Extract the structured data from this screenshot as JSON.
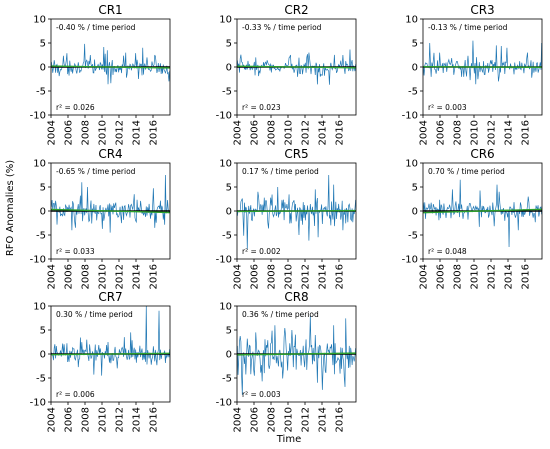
{
  "figure": {
    "ylabel": "RFO Anomalies (%)",
    "xlabel": "Time"
  },
  "chart_data": [
    {
      "type": "line",
      "title": "CR1",
      "trend_label": "-0.40 % / time period",
      "r2_label": "r² = 0.026",
      "slope": -0.4,
      "xlim": [
        2004,
        2018
      ],
      "ylim": [
        -10,
        10
      ],
      "x_ticks": [
        2004,
        2006,
        2008,
        2010,
        2012,
        2014,
        2016
      ],
      "y_ticks": [
        -10,
        -5,
        0,
        5,
        10
      ],
      "noise_amp": 1.2,
      "spikes": [
        [
          2008.6,
          2.5
        ],
        [
          2010.6,
          3.5
        ],
        [
          2012.8,
          3.0
        ],
        [
          2014.8,
          4.0
        ],
        [
          2016.2,
          2.5
        ],
        [
          2017.9,
          -3.0
        ],
        [
          2014.3,
          -2.5
        ]
      ]
    },
    {
      "type": "line",
      "title": "CR2",
      "trend_label": "-0.33 % / time period",
      "r2_label": "r² = 0.023",
      "slope": -0.33,
      "xlim": [
        2004,
        2018
      ],
      "ylim": [
        -10,
        10
      ],
      "x_ticks": [
        2004,
        2006,
        2008,
        2010,
        2012,
        2014,
        2016
      ],
      "y_ticks": [
        -10,
        -5,
        0,
        5,
        10
      ],
      "noise_amp": 1.1,
      "spikes": [
        [
          2006.2,
          2.0
        ],
        [
          2010.3,
          2.5
        ],
        [
          2012.5,
          3.0
        ],
        [
          2013.8,
          -2.0
        ],
        [
          2016.5,
          2.5
        ]
      ]
    },
    {
      "type": "line",
      "title": "CR3",
      "trend_label": "-0.13 % / time period",
      "r2_label": "r² = 0.003",
      "slope": -0.13,
      "xlim": [
        2004,
        2018
      ],
      "ylim": [
        -10,
        10
      ],
      "x_ticks": [
        2004,
        2006,
        2008,
        2010,
        2012,
        2014,
        2016
      ],
      "y_ticks": [
        -10,
        -5,
        0,
        5,
        10
      ],
      "noise_amp": 1.3,
      "spikes": [
        [
          2004.8,
          5.0
        ],
        [
          2006.0,
          3.0
        ],
        [
          2009.9,
          5.5
        ],
        [
          2012.6,
          4.5
        ],
        [
          2013.9,
          4.0
        ],
        [
          2016.3,
          3.0
        ],
        [
          2018.0,
          5.0
        ],
        [
          2012.9,
          -3.0
        ]
      ]
    },
    {
      "type": "line",
      "title": "CR4",
      "trend_label": "-0.65 % / time period",
      "r2_label": "r² = 0.033",
      "slope": -0.65,
      "xlim": [
        2004,
        2018
      ],
      "ylim": [
        -10,
        10
      ],
      "x_ticks": [
        2004,
        2006,
        2008,
        2010,
        2012,
        2014,
        2016
      ],
      "y_ticks": [
        -10,
        -5,
        0,
        5,
        10
      ],
      "noise_amp": 1.6,
      "spikes": [
        [
          2007.6,
          6.0
        ],
        [
          2008.3,
          5.0
        ],
        [
          2006.5,
          -4.0
        ],
        [
          2011.0,
          -4.5
        ],
        [
          2013.8,
          3.5
        ],
        [
          2017.5,
          7.5
        ],
        [
          2016.2,
          -3.5
        ]
      ]
    },
    {
      "type": "line",
      "title": "CR5",
      "trend_label": "0.17 % / time period",
      "r2_label": "r² = 0.002",
      "slope": 0.17,
      "xlim": [
        2004,
        2018
      ],
      "ylim": [
        -10,
        10
      ],
      "x_ticks": [
        2004,
        2006,
        2008,
        2010,
        2012,
        2014,
        2016
      ],
      "y_ticks": [
        -10,
        -5,
        0,
        5,
        10
      ],
      "noise_amp": 2.0,
      "spikes": [
        [
          2006.5,
          4.0
        ],
        [
          2008.8,
          5.0
        ],
        [
          2011.3,
          -5.0
        ],
        [
          2013.2,
          4.5
        ],
        [
          2014.8,
          7.5
        ],
        [
          2015.4,
          5.5
        ],
        [
          2016.5,
          -4.0
        ]
      ]
    },
    {
      "type": "line",
      "title": "CR6",
      "trend_label": "0.70 % / time period",
      "r2_label": "r² = 0.048",
      "slope": 0.7,
      "xlim": [
        2004,
        2018
      ],
      "ylim": [
        -10,
        10
      ],
      "x_ticks": [
        2004,
        2006,
        2008,
        2010,
        2012,
        2014,
        2016
      ],
      "y_ticks": [
        -10,
        -5,
        0,
        5,
        10
      ],
      "noise_amp": 1.4,
      "spikes": [
        [
          2008.4,
          6.5
        ],
        [
          2012.7,
          5.5
        ],
        [
          2013.0,
          4.0
        ],
        [
          2014.1,
          -7.5
        ],
        [
          2015.2,
          -4.0
        ],
        [
          2016.4,
          3.0
        ]
      ]
    },
    {
      "type": "line",
      "title": "CR7",
      "trend_label": "0.30 % / time period",
      "r2_label": "r² = 0.006",
      "slope": 0.3,
      "xlim": [
        2004,
        2018
      ],
      "ylim": [
        -10,
        10
      ],
      "x_ticks": [
        2004,
        2006,
        2008,
        2010,
        2012,
        2014,
        2016
      ],
      "y_ticks": [
        -10,
        -5,
        0,
        5,
        10
      ],
      "noise_amp": 1.5,
      "spikes": [
        [
          2008.2,
          3.0
        ],
        [
          2010.0,
          -4.5
        ],
        [
          2012.6,
          3.5
        ],
        [
          2013.4,
          4.5
        ],
        [
          2015.2,
          10.0
        ],
        [
          2016.7,
          9.0
        ],
        [
          2011.8,
          -3.0
        ]
      ]
    },
    {
      "type": "line",
      "title": "CR8",
      "trend_label": "0.36 % / time period",
      "r2_label": "r² = 0.003",
      "slope": 0.36,
      "xlim": [
        2004,
        2018
      ],
      "ylim": [
        -10,
        10
      ],
      "x_ticks": [
        2004,
        2006,
        2008,
        2010,
        2012,
        2014,
        2016
      ],
      "y_ticks": [
        -10,
        -5,
        0,
        5,
        10
      ],
      "noise_amp": 3.0,
      "spikes": [
        [
          2004.6,
          -8.5
        ],
        [
          2006.2,
          4.5
        ],
        [
          2008.5,
          6.0
        ],
        [
          2010.5,
          5.0
        ],
        [
          2012.6,
          8.0
        ],
        [
          2013.5,
          -6.0
        ],
        [
          2015.4,
          6.0
        ],
        [
          2016.6,
          -5.0
        ]
      ]
    }
  ],
  "colors": {
    "series": "#1f77b4",
    "fit": "#2ca02c",
    "zero": "#000000",
    "axis": "#000000"
  }
}
